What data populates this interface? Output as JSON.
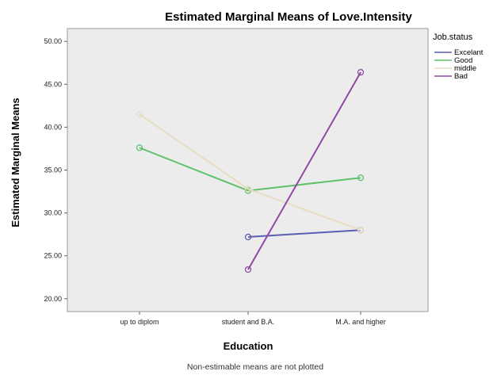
{
  "chart_data": {
    "type": "line",
    "title": "Estimated Marginal Means of Love.Intensity",
    "xlabel": "Education",
    "ylabel": "Estimated Marginal Means",
    "categories": [
      "up to diplom",
      "student and B.A.",
      "M.A. and higher"
    ],
    "ylim": [
      18.5,
      51.5
    ],
    "yticks": [
      "20.00",
      "25.00",
      "30.00",
      "35.00",
      "40.00",
      "45.00",
      "50.00"
    ],
    "ytick_values": [
      20,
      25,
      30,
      35,
      40,
      45,
      50
    ],
    "grid": false,
    "plot_background": "#ececec",
    "legend_title": "Job.status",
    "legend_position": "right",
    "series": [
      {
        "name": "Excelant",
        "color": "#5a5fb4",
        "values": [
          null,
          27.2,
          28.0
        ]
      },
      {
        "name": "Good",
        "color": "#5fc26a",
        "values": [
          37.6,
          32.6,
          34.1
        ]
      },
      {
        "name": "middle",
        "color": "#e8dcc2",
        "values": [
          41.5,
          32.8,
          28.0
        ]
      },
      {
        "name": "Bad",
        "color": "#8e4aa6",
        "values": [
          null,
          23.4,
          46.4
        ]
      }
    ],
    "footnote": "Non-estimable means are not plotted"
  }
}
